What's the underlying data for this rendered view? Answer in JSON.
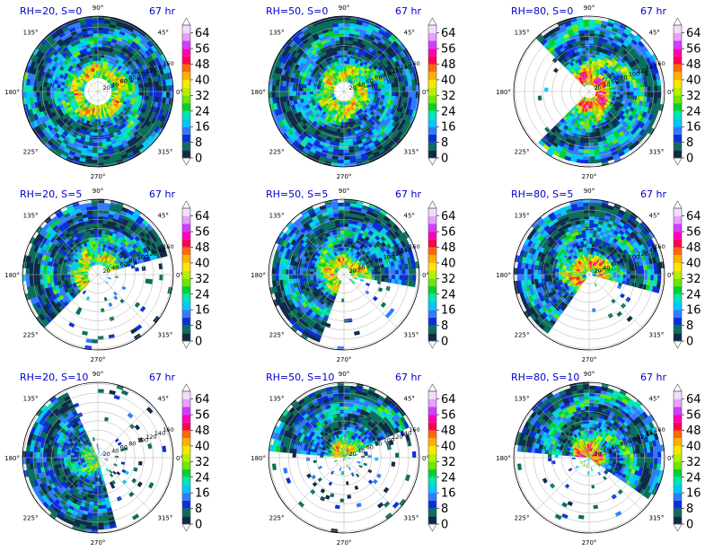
{
  "colormap": {
    "boundaries": [
      0,
      4,
      8,
      12,
      16,
      20,
      24,
      28,
      32,
      36,
      40,
      44,
      48,
      52,
      56,
      60,
      64,
      68
    ],
    "colors": [
      "#0d2a4a",
      "#0a6e5a",
      "#0a2fd6",
      "#2d7cff",
      "#00c8ff",
      "#00e6b4",
      "#00d230",
      "#6ee600",
      "#b4f000",
      "#ffe600",
      "#ffb000",
      "#ff6a00",
      "#ff0050",
      "#ff00b4",
      "#d23cff",
      "#e6a0ff",
      "#f5dcff"
    ],
    "tick_labels": [
      "0",
      "8",
      "16",
      "24",
      "32",
      "40",
      "48",
      "56",
      "64"
    ]
  },
  "polar_axes": {
    "angle_labels": [
      "0°",
      "45°",
      "90°",
      "135°",
      "180°",
      "225°",
      "270°",
      "315°"
    ],
    "radial_labels": [
      "20",
      "40",
      "60",
      "80",
      "100",
      "120",
      "140",
      "160"
    ]
  },
  "chart_data": [
    {
      "type": "heatmap",
      "projection": "polar",
      "title": "RH=20, S=0",
      "time": "67 hr",
      "coverage": 1.0,
      "intensity": 0.62,
      "eye": 0.17,
      "shift_deg": 0
    },
    {
      "type": "heatmap",
      "projection": "polar",
      "title": "RH=50, S=0",
      "time": "67 hr",
      "coverage": 1.0,
      "intensity": 0.58,
      "eye": 0.13,
      "shift_deg": 0
    },
    {
      "type": "heatmap",
      "projection": "polar",
      "title": "RH=80, S=0",
      "time": "67 hr",
      "coverage": 0.86,
      "intensity": 0.8,
      "eye": 0.07,
      "shift_deg": 0
    },
    {
      "type": "heatmap",
      "projection": "polar",
      "title": "RH=20, S=5",
      "time": "67 hr",
      "coverage": 0.62,
      "intensity": 0.55,
      "eye": 0.12,
      "shift_deg": 120
    },
    {
      "type": "heatmap",
      "projection": "polar",
      "title": "RH=50, S=5",
      "time": "67 hr",
      "coverage": 0.82,
      "intensity": 0.6,
      "eye": 0.07,
      "shift_deg": 120
    },
    {
      "type": "heatmap",
      "projection": "polar",
      "title": "RH=80, S=5",
      "time": "67 hr",
      "coverage": 0.78,
      "intensity": 0.66,
      "eye": 0.06,
      "shift_deg": 110
    },
    {
      "type": "heatmap",
      "projection": "polar",
      "title": "RH=20, S=10",
      "time": "67 hr",
      "coverage": 0.45,
      "intensity": 0.45,
      "eye": 0.0,
      "shift_deg": 200
    },
    {
      "type": "heatmap",
      "projection": "polar",
      "title": "RH=50, S=10",
      "time": "67 hr",
      "coverage": 0.35,
      "intensity": 0.6,
      "eye": 0.0,
      "shift_deg": 100
    },
    {
      "type": "heatmap",
      "projection": "polar",
      "title": "RH=80, S=10",
      "time": "67 hr",
      "coverage": 0.62,
      "intensity": 0.7,
      "eye": 0.0,
      "shift_deg": 70
    }
  ]
}
